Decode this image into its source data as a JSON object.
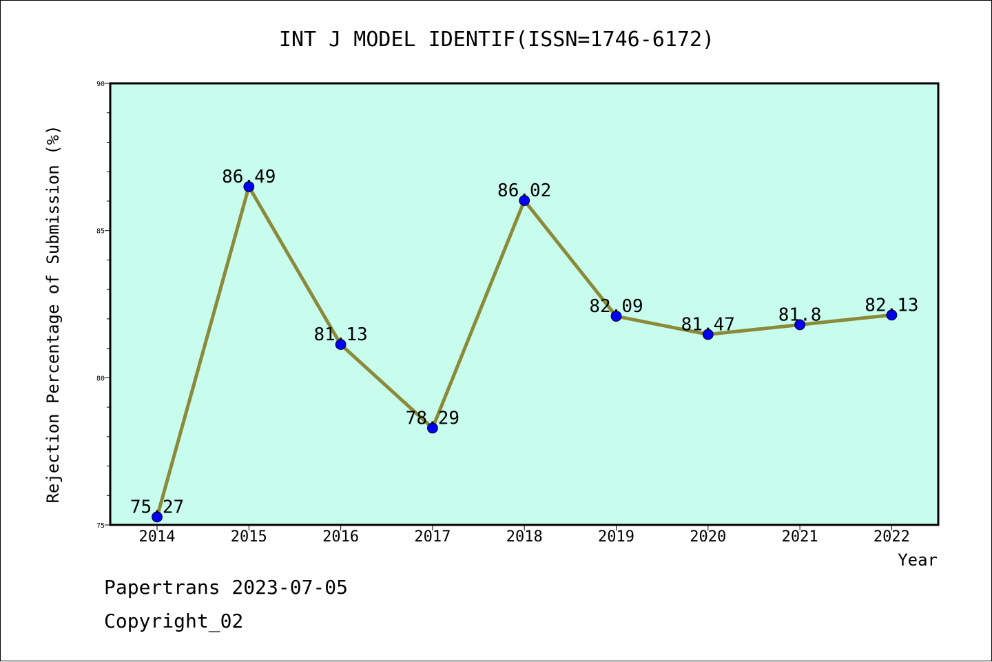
{
  "chart_data": {
    "type": "line",
    "title": "INT J MODEL IDENTIF(ISSN=1746-6172)",
    "xlabel": "Year",
    "ylabel": "Rejection Percentage of Submission (%)",
    "categories": [
      "2014",
      "2015",
      "2016",
      "2017",
      "2018",
      "2019",
      "2020",
      "2021",
      "2022"
    ],
    "values": [
      75.27,
      86.49,
      81.13,
      78.29,
      86.02,
      82.09,
      81.47,
      81.8,
      82.13
    ],
    "data_labels": [
      "75.27",
      "86.49",
      "81.13",
      "78.29",
      "86.02",
      "82.09",
      "81.47",
      "81.8",
      "82.13"
    ],
    "ylim": [
      75,
      90
    ],
    "yticks": [
      "75",
      "80",
      "85",
      "90"
    ],
    "grid": false,
    "colors": {
      "plot_background": "#c8fcec",
      "line": "#8b8a3a",
      "marker": "#0000ee"
    }
  },
  "footer": {
    "line1": "Papertrans 2023-07-05",
    "line2": "Copyright_02"
  }
}
